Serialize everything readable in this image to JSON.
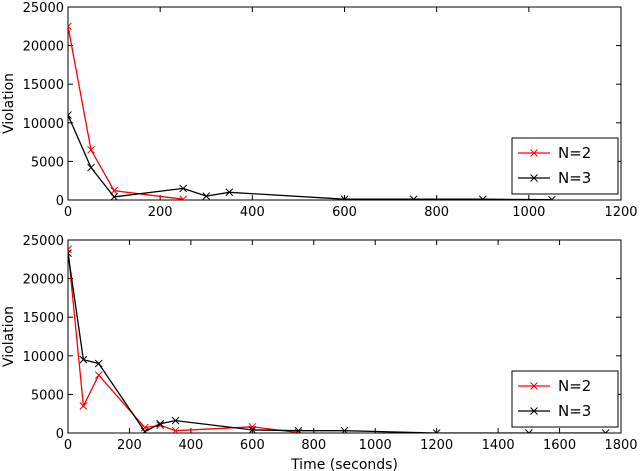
{
  "chart_data": [
    {
      "type": "line",
      "title": "",
      "xlabel": "",
      "ylabel": "Violation",
      "xlim": [
        0,
        1200
      ],
      "ylim": [
        0,
        25000
      ],
      "xticks": [
        0,
        200,
        400,
        600,
        800,
        1000,
        1200
      ],
      "yticks": [
        0,
        5000,
        10000,
        15000,
        20000,
        25000
      ],
      "grid": false,
      "legend_position": "bottom-right",
      "series": [
        {
          "name": "N=2",
          "color": "#ff0000",
          "marker": "x",
          "x": [
            0,
            50,
            100,
            250
          ],
          "y": [
            22500,
            6500,
            1200,
            100
          ]
        },
        {
          "name": "N=3",
          "color": "#000000",
          "marker": "x",
          "x": [
            0,
            50,
            100,
            250,
            300,
            350,
            600,
            750,
            900,
            1050
          ],
          "y": [
            11000,
            4200,
            400,
            1500,
            500,
            1000,
            100,
            100,
            100,
            50
          ]
        }
      ]
    },
    {
      "type": "line",
      "title": "",
      "xlabel": "Time (seconds)",
      "ylabel": "Violation",
      "xlim": [
        0,
        1800
      ],
      "ylim": [
        0,
        25000
      ],
      "xticks": [
        0,
        200,
        400,
        600,
        800,
        1000,
        1200,
        1400,
        1600,
        1800
      ],
      "yticks": [
        0,
        5000,
        10000,
        15000,
        20000,
        25000
      ],
      "grid": false,
      "legend_position": "bottom-right",
      "series": [
        {
          "name": "N=2",
          "color": "#ff0000",
          "marker": "x",
          "x": [
            0,
            50,
            100,
            250,
            300,
            350,
            600,
            750
          ],
          "y": [
            23800,
            3500,
            7500,
            700,
            1000,
            300,
            800,
            50
          ]
        },
        {
          "name": "N=3",
          "color": "#000000",
          "marker": "x",
          "x": [
            0,
            50,
            100,
            250,
            300,
            350,
            600,
            750,
            900,
            1200,
            1500,
            1750
          ],
          "y": [
            23300,
            9500,
            9000,
            200,
            1200,
            1600,
            400,
            300,
            300,
            0,
            0,
            0
          ]
        }
      ]
    }
  ]
}
